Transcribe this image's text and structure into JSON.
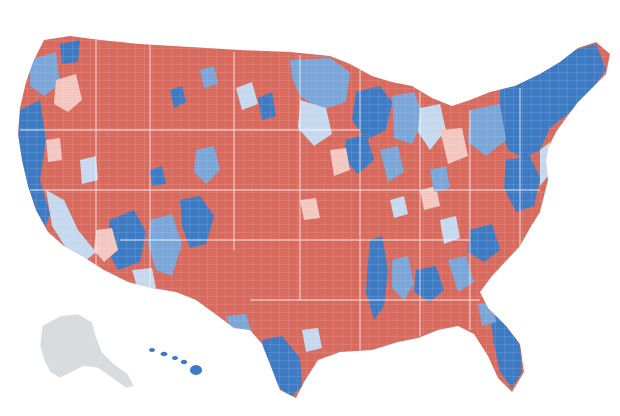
{
  "map": {
    "colors": {
      "dem_strong": "#3d7bc4",
      "dem_mid": "#7aa6d8",
      "dem_light": "#c5d8ee",
      "rep_strong": "#d86a5e",
      "rep_mid": "#e89a90",
      "rep_light": "#f3c6c0",
      "no_data": "#d8dcde",
      "border": "#ffffff"
    },
    "regions": [
      {
        "name": "contiguous-us",
        "category": "rep_strong"
      },
      {
        "name": "alaska",
        "category": "no_data"
      },
      {
        "name": "hawaii",
        "category": "dem_strong"
      }
    ]
  }
}
